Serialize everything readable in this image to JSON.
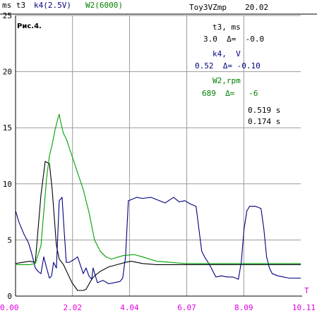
{
  "header": {
    "series_labels": [
      {
        "text": "ms t3",
        "color": "#000000"
      },
      {
        "text": "k4(2.5V)",
        "color": "#000080"
      },
      {
        "text": "W2(6000)",
        "color": "#008000"
      }
    ],
    "file": "Toy3VZmp",
    "time": "20.02"
  },
  "figure_label": "Рис.4.",
  "info": {
    "t3_title": "t3, ms",
    "t3_values": "3.0  Δ=  -0.0",
    "k4_title": "k4,  V",
    "k4_values": "0.52  Δ= -0.10",
    "w2_title": "W2,rpm",
    "w2_values": "689  Δ=   -6",
    "cursor1": "0.519 s",
    "cursor2": "0.174 s"
  },
  "axis_unit": "T",
  "colors": {
    "t3": "#000000",
    "k4": "#000080",
    "w2": "#00a000",
    "tick_label": "#e000e0",
    "grid": "#9a9a9a"
  },
  "chart_data": {
    "type": "line",
    "xlim": [
      0,
      10.11
    ],
    "ylim": [
      0,
      25
    ],
    "x_ticks": [
      "0.00",
      "2.02",
      "4.04",
      "6.07",
      "8.09",
      "10.11"
    ],
    "y_ticks": [
      "0",
      "5",
      "10",
      "15",
      "20",
      "25"
    ],
    "series": [
      {
        "name": "t3",
        "x": [
          0,
          0.5,
          0.7,
          0.9,
          1.05,
          1.2,
          1.3,
          1.45,
          1.55,
          1.7,
          1.85,
          2.0,
          2.2,
          2.4,
          2.5,
          2.7,
          2.8,
          2.9,
          3.0,
          3.3,
          3.6,
          3.9,
          4.1,
          4.5,
          5.0,
          6.0,
          7.0,
          8.0,
          9.0,
          10.11
        ],
        "y": [
          2.9,
          3.1,
          3.0,
          9.0,
          12.0,
          11.8,
          9.5,
          4.5,
          3.3,
          2.8,
          2.0,
          1.2,
          0.5,
          0.5,
          0.6,
          1.5,
          1.8,
          2.0,
          2.2,
          2.6,
          2.8,
          3.0,
          3.1,
          2.9,
          2.8,
          2.8,
          2.8,
          2.8,
          2.8,
          2.8
        ]
      },
      {
        "name": "k4",
        "x": [
          0,
          0.12,
          0.3,
          0.45,
          0.55,
          0.7,
          0.8,
          0.9,
          1.0,
          1.1,
          1.2,
          1.28,
          1.35,
          1.45,
          1.55,
          1.65,
          1.72,
          1.8,
          1.9,
          2.1,
          2.2,
          2.4,
          2.5,
          2.6,
          2.7,
          2.75,
          2.9,
          3.1,
          3.3,
          3.5,
          3.7,
          3.8,
          3.9,
          4.0,
          4.1,
          4.3,
          4.5,
          4.8,
          5.0,
          5.3,
          5.6,
          5.8,
          6.0,
          6.2,
          6.4,
          6.5,
          6.6,
          6.7,
          6.9,
          7.0,
          7.1,
          7.3,
          7.5,
          7.7,
          7.9,
          8.0,
          8.1,
          8.2,
          8.3,
          8.5,
          8.7,
          8.8,
          8.9,
          9.0,
          9.1,
          9.3,
          9.5,
          9.7,
          9.9,
          10.11
        ],
        "y": [
          7.6,
          6.6,
          5.5,
          4.8,
          4.0,
          2.5,
          2.2,
          2.0,
          3.5,
          2.5,
          1.6,
          1.8,
          3.0,
          2.5,
          8.5,
          8.8,
          6.0,
          3.0,
          3.0,
          3.3,
          3.5,
          2.0,
          2.5,
          1.8,
          1.5,
          2.5,
          1.2,
          1.4,
          1.1,
          1.2,
          1.3,
          1.6,
          3.5,
          8.5,
          8.6,
          8.8,
          8.7,
          8.8,
          8.6,
          8.3,
          8.8,
          8.4,
          8.5,
          8.2,
          8.0,
          6.0,
          4.0,
          3.5,
          2.7,
          2.2,
          1.7,
          1.8,
          1.7,
          1.7,
          1.5,
          3.0,
          6.0,
          7.6,
          8.0,
          8.0,
          7.8,
          6.0,
          3.5,
          2.5,
          2.0,
          1.8,
          1.7,
          1.6,
          1.6,
          1.6
        ]
      },
      {
        "name": "W2",
        "x": [
          0,
          0.5,
          0.7,
          0.9,
          1.0,
          1.1,
          1.2,
          1.3,
          1.4,
          1.5,
          1.55,
          1.6,
          1.7,
          1.8,
          2.0,
          2.2,
          2.4,
          2.6,
          2.8,
          3.0,
          3.2,
          3.4,
          3.8,
          4.2,
          4.5,
          5.0,
          5.5,
          6.0,
          7.0,
          8.0,
          9.0,
          10.11
        ],
        "y": [
          2.8,
          2.8,
          2.9,
          4.5,
          7.5,
          10.5,
          12.5,
          13.5,
          14.8,
          15.8,
          16.2,
          15.5,
          14.5,
          14.0,
          12.5,
          11.0,
          9.5,
          7.5,
          5.0,
          4.0,
          3.5,
          3.3,
          3.6,
          3.7,
          3.5,
          3.1,
          3.0,
          2.9,
          2.9,
          2.9,
          2.9,
          2.9
        ]
      }
    ]
  }
}
